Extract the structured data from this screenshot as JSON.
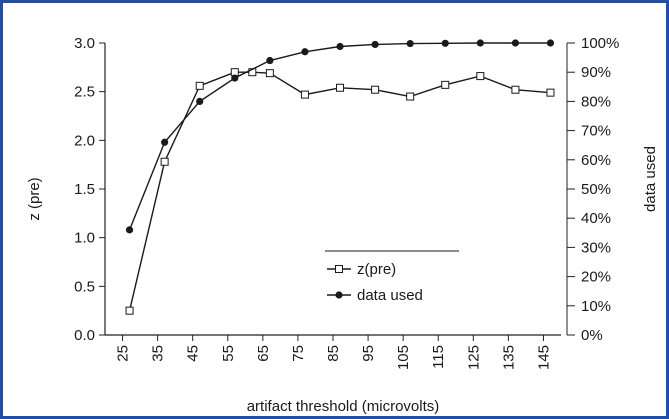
{
  "chart_data": {
    "type": "line",
    "xlabel": "artifact threshold (microvolts)",
    "ylabel_left": "z (pre)",
    "ylabel_right": "data used",
    "categories": [
      "25",
      "35",
      "45",
      "55",
      "65",
      "75",
      "85",
      "95",
      "105",
      "115",
      "125",
      "135",
      "145"
    ],
    "ylim_left": [
      0,
      3
    ],
    "ylim_right": [
      0,
      100
    ],
    "y_ticks_left": [
      "0.0",
      "0.5",
      "1.0",
      "1.5",
      "2.0",
      "2.5",
      "3.0"
    ],
    "y_ticks_right": [
      "0%",
      "10%",
      "20%",
      "30%",
      "40%",
      "50%",
      "60%",
      "70%",
      "80%",
      "90%",
      "100%"
    ],
    "x": [
      25,
      35,
      45,
      55,
      65,
      75,
      85,
      95,
      105,
      115,
      125,
      135,
      145
    ],
    "series": [
      {
        "name": "z(pre)",
        "axis": "left",
        "marker": "open-square",
        "x": [
          27,
          37,
          47,
          57,
          62,
          67,
          77,
          87,
          97,
          107,
          117,
          127,
          137,
          147
        ],
        "values": [
          0.25,
          1.78,
          2.56,
          2.7,
          2.7,
          2.69,
          2.47,
          2.54,
          2.52,
          2.45,
          2.57,
          2.66,
          2.52,
          2.49
        ]
      },
      {
        "name": "data used",
        "axis": "right",
        "marker": "filled-circle",
        "x": [
          27,
          37,
          47,
          57,
          67,
          77,
          87,
          97,
          107,
          117,
          127,
          137,
          147
        ],
        "values": [
          36,
          66,
          80,
          88,
          94,
          97,
          98.8,
          99.5,
          99.8,
          99.9,
          100,
          100,
          100
        ]
      }
    ],
    "legend_position": "center-right",
    "grid": false
  }
}
